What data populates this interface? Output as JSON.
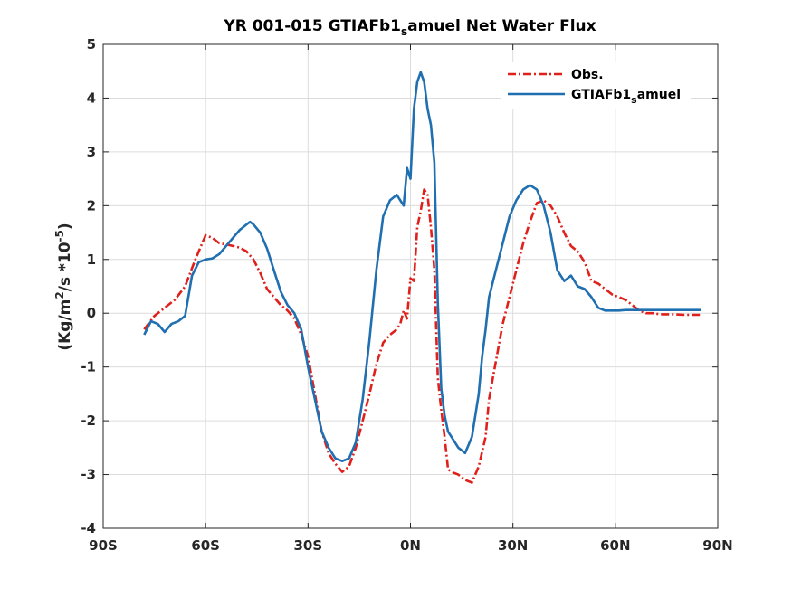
{
  "chart_data": {
    "type": "line",
    "title": "YR 001-015 GTIAFb1_samuel  Net Water Flux",
    "xlabel": "",
    "ylabel": "(Kg/m^2/s *10^-5)",
    "xlim": [
      -90,
      90
    ],
    "ylim": [
      -4,
      5
    ],
    "x_ticks": [
      -90,
      -60,
      -30,
      0,
      30,
      60,
      90
    ],
    "x_tick_labels": [
      "90S",
      "60S",
      "30S",
      "0N",
      "30N",
      "60N",
      "90N"
    ],
    "y_ticks": [
      -4,
      -3,
      -2,
      -1,
      0,
      1,
      2,
      3,
      4,
      5
    ],
    "y_tick_labels": [
      "-4",
      "-3",
      "-2",
      "-1",
      "0",
      "1",
      "2",
      "3",
      "4",
      "5"
    ],
    "grid": true,
    "legend_position": "top-right",
    "series": [
      {
        "name": "Obs.",
        "color": "#e0201b",
        "style": "dash-dot",
        "x": [
          -78,
          -75,
          -72,
          -69,
          -66,
          -63,
          -61,
          -60,
          -58,
          -56,
          -54,
          -52,
          -50,
          -48,
          -46,
          -44,
          -42,
          -40,
          -38,
          -36,
          -34,
          -32,
          -30,
          -28,
          -26,
          -24,
          -22,
          -20,
          -18,
          -16,
          -14,
          -12,
          -10,
          -8,
          -6,
          -4,
          -3,
          -2,
          -1,
          0,
          1,
          2,
          3,
          4,
          5,
          6,
          7,
          8,
          9,
          10,
          11,
          12,
          14,
          16,
          18,
          20,
          22,
          23,
          25,
          27,
          29,
          31,
          33,
          35,
          37,
          39,
          41,
          43,
          45,
          47,
          49,
          51,
          53,
          55,
          57,
          59,
          61,
          63,
          65,
          67,
          69,
          71,
          73,
          75,
          77,
          80,
          83,
          85
        ],
        "y": [
          -0.3,
          -0.05,
          0.1,
          0.25,
          0.5,
          1.0,
          1.3,
          1.45,
          1.4,
          1.3,
          1.28,
          1.25,
          1.22,
          1.15,
          1.0,
          0.75,
          0.45,
          0.3,
          0.15,
          0.05,
          -0.1,
          -0.4,
          -0.8,
          -1.5,
          -2.2,
          -2.6,
          -2.8,
          -2.95,
          -2.85,
          -2.5,
          -2.0,
          -1.5,
          -0.95,
          -0.55,
          -0.4,
          -0.3,
          -0.2,
          0.05,
          -0.1,
          0.65,
          0.6,
          1.6,
          1.9,
          2.3,
          2.2,
          1.6,
          0.8,
          -1.2,
          -1.8,
          -2.3,
          -2.9,
          -2.95,
          -3.0,
          -3.1,
          -3.15,
          -2.85,
          -2.3,
          -1.6,
          -0.9,
          -0.2,
          0.3,
          0.8,
          1.3,
          1.7,
          2.05,
          2.1,
          2.0,
          1.8,
          1.5,
          1.25,
          1.15,
          0.95,
          0.6,
          0.55,
          0.45,
          0.35,
          0.3,
          0.25,
          0.15,
          0.05,
          0.0,
          0.0,
          -0.02,
          -0.02,
          -0.02,
          -0.03,
          -0.03,
          -0.03
        ]
      },
      {
        "name": "GTIAFb1_samuel",
        "color": "#1f6fb1",
        "style": "solid",
        "x": [
          -78,
          -76,
          -74,
          -72,
          -70,
          -68,
          -66,
          -64,
          -62,
          -60,
          -58,
          -56,
          -54,
          -52,
          -50,
          -48,
          -47,
          -46,
          -44,
          -42,
          -40,
          -38,
          -36,
          -34,
          -32,
          -30,
          -28,
          -26,
          -24,
          -22,
          -20,
          -18,
          -16,
          -14,
          -12,
          -10,
          -8,
          -6,
          -4,
          -2,
          -1,
          0,
          1,
          2,
          3,
          4,
          5,
          6,
          7,
          8,
          9,
          10,
          11,
          12,
          14,
          16,
          18,
          20,
          21,
          22,
          23,
          25,
          27,
          29,
          31,
          33,
          35,
          37,
          39,
          41,
          43,
          45,
          47,
          49,
          51,
          53,
          55,
          57,
          59,
          61,
          63,
          65,
          67,
          69,
          71,
          73,
          75,
          77,
          80,
          83,
          85
        ],
        "y": [
          -0.4,
          -0.15,
          -0.2,
          -0.35,
          -0.2,
          -0.15,
          -0.05,
          0.7,
          0.95,
          1.0,
          1.02,
          1.1,
          1.25,
          1.4,
          1.55,
          1.65,
          1.7,
          1.65,
          1.5,
          1.2,
          0.8,
          0.4,
          0.15,
          0.0,
          -0.3,
          -1.0,
          -1.6,
          -2.2,
          -2.5,
          -2.7,
          -2.75,
          -2.7,
          -2.4,
          -1.6,
          -0.5,
          0.8,
          1.8,
          2.1,
          2.2,
          2.0,
          2.7,
          2.5,
          3.8,
          4.3,
          4.48,
          4.3,
          3.8,
          3.5,
          2.8,
          0.2,
          -1.4,
          -1.9,
          -2.2,
          -2.3,
          -2.5,
          -2.6,
          -2.3,
          -1.5,
          -0.8,
          -0.3,
          0.3,
          0.8,
          1.3,
          1.8,
          2.1,
          2.3,
          2.38,
          2.3,
          2.0,
          1.5,
          0.8,
          0.6,
          0.7,
          0.5,
          0.45,
          0.3,
          0.1,
          0.05,
          0.05,
          0.05,
          0.06,
          0.06,
          0.06,
          0.06,
          0.06,
          0.06,
          0.06,
          0.06,
          0.06,
          0.06,
          0.06
        ]
      }
    ]
  }
}
